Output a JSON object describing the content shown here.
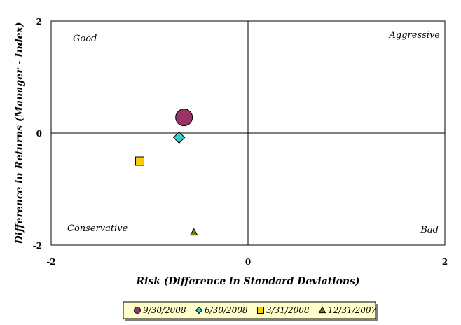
{
  "chart_data": {
    "type": "scatter",
    "xlabel": "Risk (Difference in Standard Deviations)",
    "ylabel": "Difference in Returns (Manager - Index)",
    "xlim": [
      -2,
      2
    ],
    "ylim": [
      -2,
      2
    ],
    "x_ticks": [
      "-2",
      "0",
      "2"
    ],
    "y_ticks": [
      "2",
      "0",
      "-2"
    ],
    "grid": false,
    "legend_position": "bottom",
    "quadrant_labels": {
      "top_left": "Good",
      "top_right": "Aggressive",
      "bottom_left": "Conservative",
      "bottom_right": "Bad"
    },
    "series": [
      {
        "name": "9/30/2008",
        "marker": "circle",
        "color": "#993366",
        "x": -0.65,
        "y": 0.28
      },
      {
        "name": "6/30/2008",
        "marker": "diamond",
        "color": "#33cccc",
        "x": -0.7,
        "y": -0.08
      },
      {
        "name": "3/31/2008",
        "marker": "square",
        "color": "#ffcc00",
        "x": -1.1,
        "y": -0.5
      },
      {
        "name": "12/31/2007",
        "marker": "triangle",
        "color": "#808000",
        "x": -0.55,
        "y": -1.77
      }
    ]
  }
}
